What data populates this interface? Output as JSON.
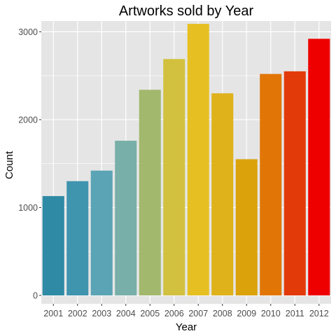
{
  "chart_data": {
    "type": "bar",
    "title": "Artworks sold by Year",
    "xlabel": "Year",
    "ylabel": "Count",
    "categories": [
      "2001",
      "2002",
      "2003",
      "2004",
      "2005",
      "2006",
      "2007",
      "2008",
      "2009",
      "2010",
      "2011",
      "2012"
    ],
    "values": [
      1130,
      1300,
      1420,
      1760,
      2340,
      2690,
      3090,
      2300,
      1550,
      2520,
      2550,
      2920
    ],
    "bar_colors": [
      "#2E8AA5",
      "#3F94AE",
      "#5AA4B5",
      "#78AFA9",
      "#A2B86D",
      "#D2C13F",
      "#E6C022",
      "#DFB21C",
      "#DBA20C",
      "#E17606",
      "#E33A0A",
      "#EE0000"
    ],
    "ylim": [
      0,
      3250
    ],
    "yticks": [
      0,
      1000,
      2000,
      3000
    ],
    "grid": true,
    "panel_background": "#E5E5E5",
    "grid_color": "#FFFFFF",
    "legend": "none"
  }
}
